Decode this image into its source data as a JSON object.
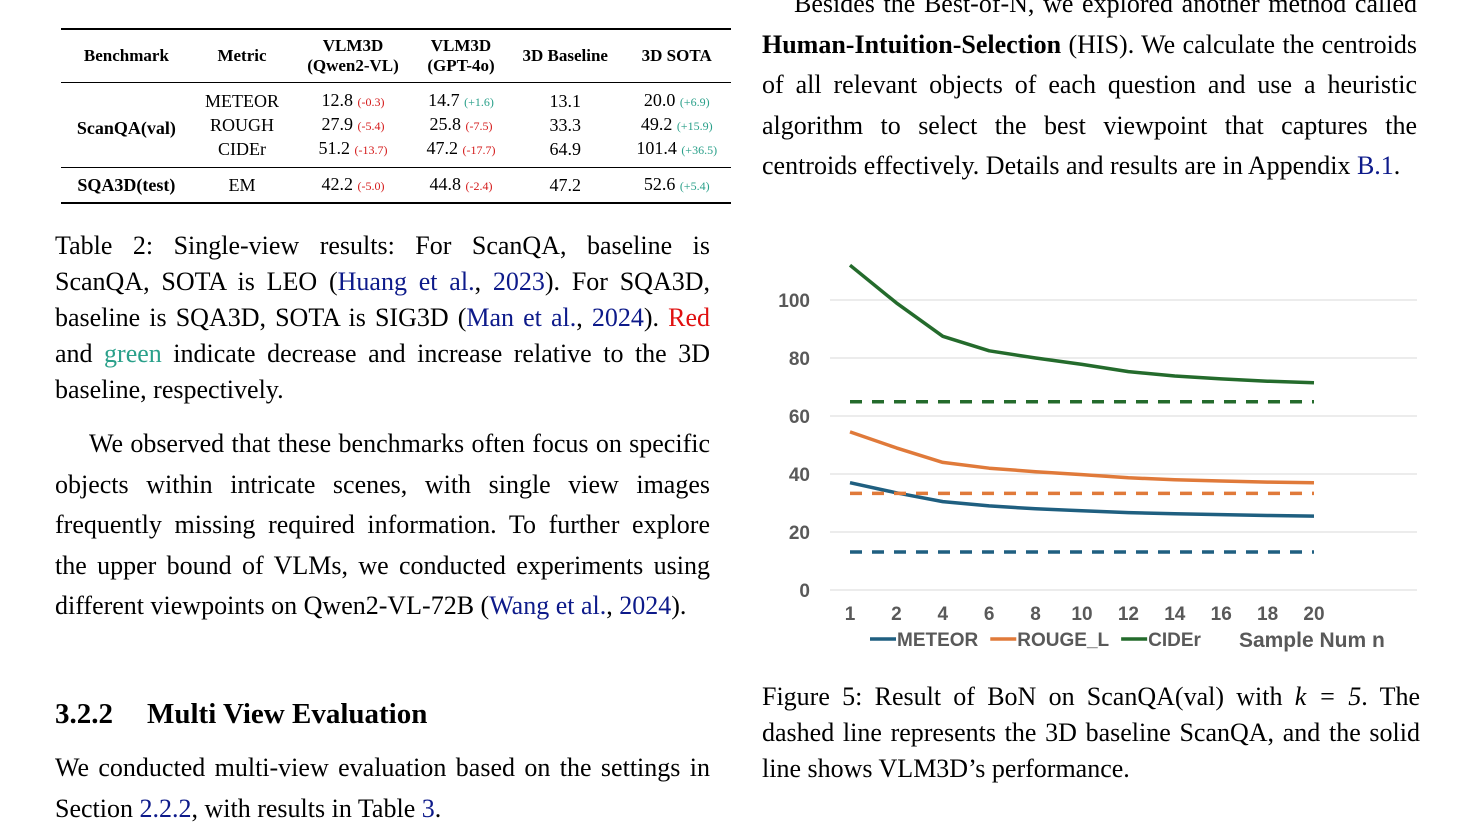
{
  "table": {
    "headers": [
      "Benchmark",
      "Metric",
      "VLM3D",
      "(Qwen2-VL)",
      "VLM3D",
      "(GPT-4o)",
      "3D Baseline",
      "3D SOTA"
    ],
    "scanqa": {
      "benchmark": "ScanQA(val)",
      "rows": [
        {
          "metric": "METEOR",
          "q": "12.8",
          "qd": "(-0.3)",
          "g": "14.7",
          "gd": "(+1.6)",
          "base": "13.1",
          "sota": "20.0",
          "sd": "(+6.9)"
        },
        {
          "metric": "ROUGH",
          "q": "27.9",
          "qd": "(-5.4)",
          "g": "25.8",
          "gd": "(-7.5)",
          "base": "33.3",
          "sota": "49.2",
          "sd": "(+15.9)"
        },
        {
          "metric": "CIDEr",
          "q": "51.2",
          "qd": "(-13.7)",
          "g": "47.2",
          "gd": "(-17.7)",
          "base": "64.9",
          "sota": "101.4",
          "sd": "(+36.5)"
        }
      ]
    },
    "sqa": {
      "benchmark": "SQA3D(test)",
      "metric": "EM",
      "q": "42.2",
      "qd": "(-5.0)",
      "g": "44.8",
      "gd": "(-2.4)",
      "base": "47.2",
      "sota": "52.6",
      "sd": "(+5.4)"
    }
  },
  "caption2": {
    "t1": "Table 2: Single-view results: For ScanQA, baseline is ScanQA, SOTA is LEO (",
    "l1": "Huang et al.",
    "t2": ", ",
    "l2": "2023",
    "t3": "). For SQA3D, baseline is SQA3D, SOTA is SIG3D (",
    "l3": "Man et al.",
    "t4": ", ",
    "l4": "2024",
    "t5": "). ",
    "red": "Red",
    "t6": " and ",
    "green": "green",
    "t7": " indicate decrease and increase relative to the 3D baseline, respectively."
  },
  "para1": {
    "t1": "We observed that these benchmarks often focus on specific objects within intricate scenes, with single view images frequently missing required information. To further explore the upper bound of VLMs, we conducted experiments using different viewpoints on Qwen2-VL-72B (",
    "l1": "Wang et al.",
    "t2": ", ",
    "l2": "2024",
    "t3": ")."
  },
  "section": {
    "number": "3.2.2",
    "title": "Multi View Evaluation"
  },
  "para2": {
    "t1": "We conducted multi-view evaluation based on the settings in Section ",
    "l1": "2.2.2",
    "t2": ", with results in Table ",
    "l2": "3",
    "t3": "."
  },
  "right_para": {
    "t1": "Besides the Best-of-N, we explored another method called ",
    "bold": "Human-Intuition-Selection",
    "t2": " (HIS). We calculate the centroids of all relevant objects of each question and use a heuristic algorithm to select the best viewpoint that captures the centroids effectively. Details and results are in Appendix ",
    "l1": "B.1",
    "t3": "."
  },
  "caption5": {
    "t1": "Figure 5: Result of BoN on ScanQA(val) with ",
    "math": "k = 5",
    "t2": ". The dashed line represents the 3D baseline ScanQA, and the solid line shows VLM3D’s performance."
  },
  "chart_data": {
    "type": "line",
    "x": [
      "1",
      "2",
      "4",
      "6",
      "8",
      "10",
      "12",
      "14",
      "16",
      "18",
      "20"
    ],
    "ylim": [
      0,
      100
    ],
    "yticks": [
      0,
      20,
      40,
      60,
      80,
      100
    ],
    "grid": true,
    "legend_position": "bottom",
    "x_label": "Sample Num n",
    "colors": {
      "METEOR": "#1f5f80",
      "ROUGE_L": "#e07a3a",
      "CIDEr": "#246b2c"
    },
    "series": [
      {
        "name": "METEOR",
        "style": "solid",
        "values": [
          37,
          33.5,
          30.5,
          29,
          28,
          27.3,
          26.7,
          26.3,
          26,
          25.7,
          25.5
        ]
      },
      {
        "name": "ROUGE_L",
        "style": "solid",
        "values": [
          54.5,
          49,
          44,
          42,
          40.8,
          39.8,
          38.7,
          38,
          37.6,
          37.2,
          37
        ]
      },
      {
        "name": "CIDEr",
        "style": "solid",
        "values": [
          112,
          99,
          87.5,
          82.5,
          80,
          77.8,
          75.3,
          73.8,
          72.8,
          72,
          71.5
        ]
      },
      {
        "name": "METEOR",
        "style": "dashed",
        "values": [
          13.1,
          13.1,
          13.1,
          13.1,
          13.1,
          13.1,
          13.1,
          13.1,
          13.1,
          13.1,
          13.1
        ]
      },
      {
        "name": "ROUGE_L",
        "style": "dashed",
        "values": [
          33.3,
          33.3,
          33.3,
          33.3,
          33.3,
          33.3,
          33.3,
          33.3,
          33.3,
          33.3,
          33.3
        ]
      },
      {
        "name": "CIDEr",
        "style": "dashed",
        "values": [
          64.9,
          64.9,
          64.9,
          64.9,
          64.9,
          64.9,
          64.9,
          64.9,
          64.9,
          64.9,
          64.9
        ]
      }
    ]
  }
}
